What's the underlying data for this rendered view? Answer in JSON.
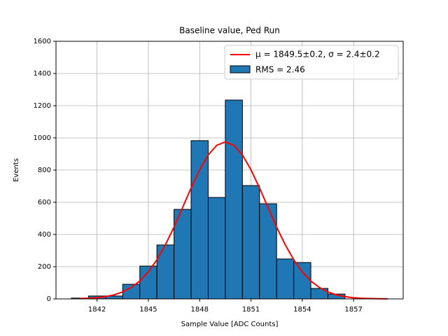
{
  "chart_data": {
    "type": "histogram",
    "title": "Baseline value, Ped Run",
    "xlabel": "Sample Value [ADC Counts]",
    "ylabel": "Events",
    "bins": [
      1840.5,
      1841.5,
      1842.5,
      1843.5,
      1844.5,
      1845.5,
      1846.5,
      1847.5,
      1848.5,
      1849.5,
      1850.5,
      1851.5,
      1852.5,
      1853.5,
      1854.5,
      1855.5,
      1856.5
    ],
    "counts": [
      5,
      18,
      18,
      91,
      204,
      335,
      556,
      983,
      630,
      1235,
      704,
      591,
      248,
      226,
      65,
      30
    ],
    "name": "RMS = 2.46",
    "color": "#1f77b4",
    "edgecolor": "#000000",
    "fit": {
      "name": "μ = 1849.5±0.2, σ = 2.4±0.2",
      "color": "#ff0000",
      "x": [
        1841,
        1841.5,
        1842,
        1842.5,
        1843,
        1843.5,
        1844,
        1844.5,
        1845,
        1845.5,
        1846,
        1846.5,
        1847,
        1847.5,
        1848,
        1848.5,
        1849,
        1849.5,
        1850,
        1850.5,
        1851,
        1851.5,
        1852,
        1852.5,
        1853,
        1853.5,
        1854,
        1854.5,
        1855,
        1855.5,
        1856,
        1856.5,
        1857,
        1857.5,
        1858,
        1858.5,
        1859
      ],
      "values": [
        2,
        4,
        7,
        14,
        25,
        43,
        71,
        111,
        168,
        243,
        337,
        446,
        567,
        689,
        802,
        894,
        954,
        975,
        954,
        894,
        802,
        689,
        567,
        446,
        337,
        243,
        168,
        111,
        71,
        43,
        25,
        14,
        7,
        4,
        2,
        1,
        0.4
      ]
    },
    "xlim": [
      1839.6,
      1859.9
    ],
    "xticks": [
      1842,
      1845,
      1848,
      1851,
      1854,
      1857
    ],
    "ylim": [
      0,
      1600
    ],
    "yticks": [
      0,
      200,
      400,
      600,
      800,
      1000,
      1200,
      1400,
      1600
    ],
    "grid": true,
    "legend": "upper right"
  }
}
